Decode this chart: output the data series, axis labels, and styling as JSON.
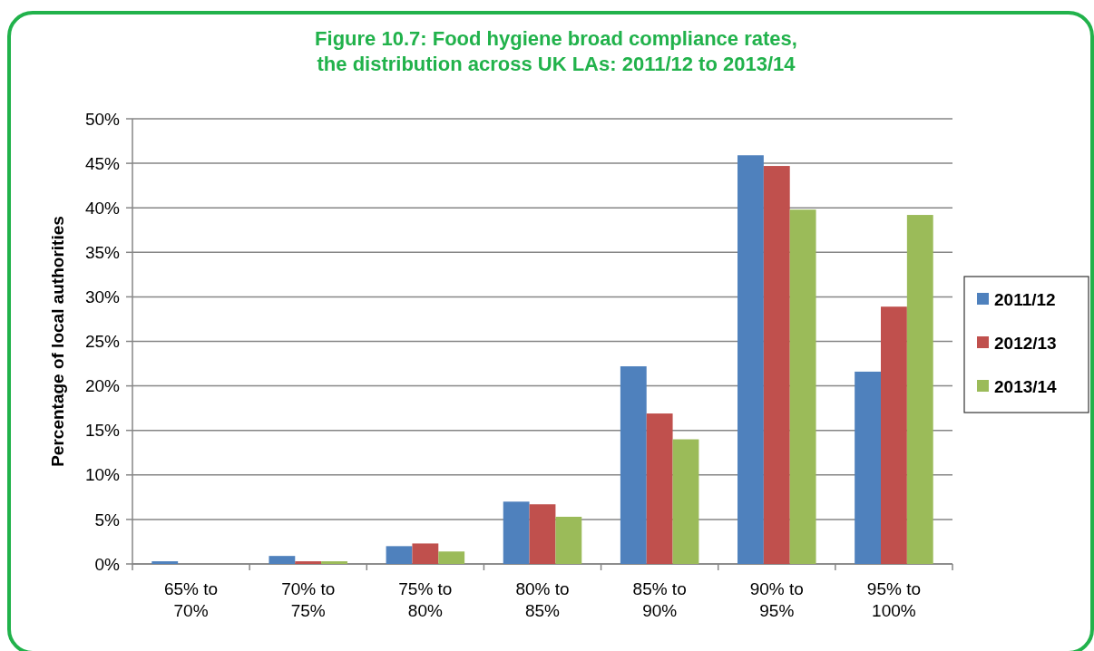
{
  "chart_data": {
    "type": "bar",
    "title": "Figure 10.7: Food hygiene broad compliance rates,\nthe distribution across UK LAs: 2011/12 to 2013/14",
    "ylabel": "Percentage  of  local authorities",
    "categories": [
      "65% to\n70%",
      "70% to\n75%",
      "75% to\n80%",
      "80% to\n85%",
      "85% to\n90%",
      "90% to\n95%",
      "95% to\n100%"
    ],
    "series": [
      {
        "name": "2011/12",
        "color": "#4f81bd",
        "values": [
          0.3,
          0.9,
          2.0,
          7.0,
          22.2,
          45.9,
          21.6
        ]
      },
      {
        "name": "2012/13",
        "color": "#c0504d",
        "values": [
          0,
          0.3,
          2.3,
          6.7,
          16.9,
          44.7,
          28.9
        ]
      },
      {
        "name": "2013/14",
        "color": "#9bbb59",
        "values": [
          0,
          0.3,
          1.4,
          5.3,
          14.0,
          39.8,
          39.2
        ]
      }
    ],
    "ylim": [
      0,
      50
    ],
    "yticks": [
      {
        "value": 0,
        "label": "0%"
      },
      {
        "value": 5,
        "label": "5%"
      },
      {
        "value": 10,
        "label": "10%"
      },
      {
        "value": 15,
        "label": "15%"
      },
      {
        "value": 20,
        "label": "20%"
      },
      {
        "value": 25,
        "label": "25%"
      },
      {
        "value": 30,
        "label": "30%"
      },
      {
        "value": 35,
        "label": "35%"
      },
      {
        "value": 40,
        "label": "40%"
      },
      {
        "value": 45,
        "label": "45%"
      },
      {
        "value": 50,
        "label": "50%"
      }
    ],
    "grid": "y",
    "legend": "right"
  }
}
